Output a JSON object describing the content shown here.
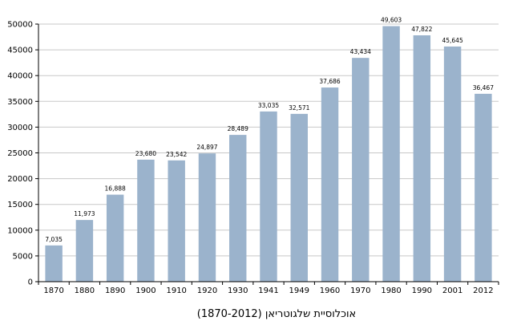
{
  "chart_data": {
    "type": "bar",
    "title": "אוכלוסיית שלגוטריאן (1870-2012)",
    "xlabel": "",
    "ylabel": "",
    "categories": [
      "1870",
      "1880",
      "1890",
      "1900",
      "1910",
      "1920",
      "1930",
      "1941",
      "1949",
      "1960",
      "1970",
      "1980",
      "1990",
      "2001",
      "2012"
    ],
    "values": [
      7035,
      11973,
      16888,
      23680,
      23542,
      24897,
      28489,
      33035,
      32571,
      37686,
      43434,
      49603,
      47822,
      45645,
      36467
    ],
    "value_labels": [
      "7,035",
      "11,973",
      "16,888",
      "23,680",
      "23,542",
      "24,897",
      "28,489",
      "33,035",
      "32,571",
      "37,686",
      "43,434",
      "49,603",
      "47,822",
      "45,645",
      "36,467"
    ],
    "ylim": [
      0,
      50000
    ],
    "yticks": [
      "0",
      "5000",
      "10000",
      "15000",
      "20000",
      "25000",
      "30000",
      "35000",
      "40000",
      "45000",
      "50000"
    ],
    "grid": true,
    "colors": {
      "bar": "#9bb3cc",
      "grid": "#c8c8c8",
      "axis": "#000000"
    }
  }
}
